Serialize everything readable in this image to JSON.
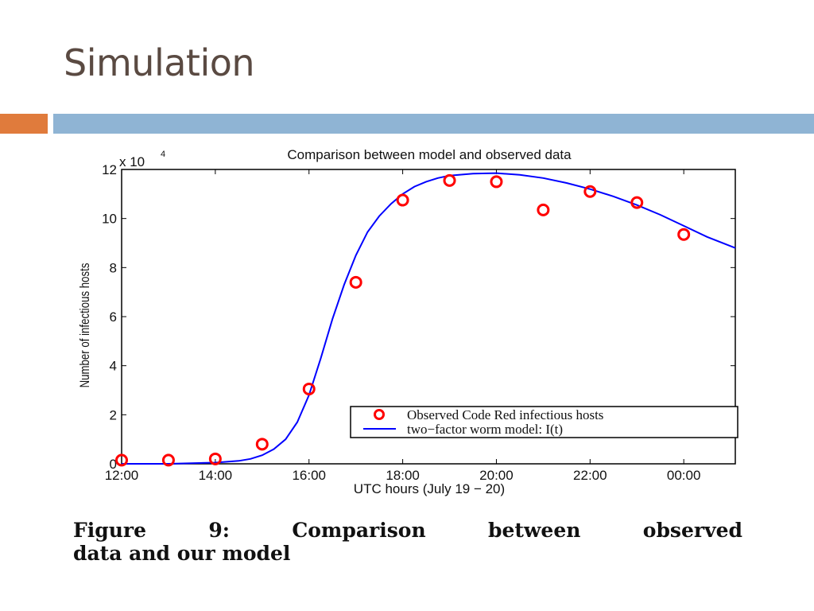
{
  "slide": {
    "title": "Simulation",
    "caption_line1": "Figure 9: Comparison between observed",
    "caption_line2": "data and our model"
  },
  "colors": {
    "accent_orange": "#e07b3c",
    "accent_blue": "#8fb4d4",
    "observed_marker": "#ff0000",
    "model_line": "#0000ff"
  },
  "chart_data": {
    "type": "line",
    "title": "Comparison between model and observed data",
    "xlabel": "UTC hours (July 19 − 20)",
    "ylabel": "Number of infectious hosts",
    "y_multiplier_label": "x 10",
    "y_multiplier_exp": "4",
    "xlim": [
      12,
      25.1
    ],
    "ylim": [
      0,
      12
    ],
    "x_ticks": [
      12,
      14,
      16,
      18,
      20,
      22,
      24
    ],
    "x_tick_labels": [
      "12:00",
      "14:00",
      "16:00",
      "18:00",
      "20:00",
      "22:00",
      "00:00"
    ],
    "y_ticks": [
      0,
      2,
      4,
      6,
      8,
      10,
      12
    ],
    "y_tick_labels": [
      "0",
      "2",
      "4",
      "6",
      "8",
      "10",
      "12"
    ],
    "legend_position": "bottom-right",
    "series": [
      {
        "name": "Observed Code Red infectious hosts",
        "kind": "scatter",
        "marker": "circle",
        "x": [
          12,
          13,
          14,
          15,
          16,
          17,
          18,
          19,
          20,
          21,
          22,
          23,
          24
        ],
        "y": [
          0.15,
          0.15,
          0.2,
          0.8,
          3.05,
          7.4,
          10.75,
          11.55,
          11.5,
          10.35,
          11.1,
          10.65,
          9.35
        ]
      },
      {
        "name": "two−factor worm model: I(t)",
        "kind": "line",
        "x": [
          12,
          13,
          14,
          14.5,
          14.75,
          15,
          15.25,
          15.5,
          15.75,
          16,
          16.25,
          16.5,
          16.75,
          17,
          17.25,
          17.5,
          17.75,
          18,
          18.25,
          18.5,
          18.75,
          19,
          19.5,
          20,
          20.5,
          21,
          21.5,
          22,
          22.5,
          23,
          23.5,
          24,
          24.5,
          25.1
        ],
        "y": [
          0.0,
          0.0,
          0.05,
          0.12,
          0.2,
          0.35,
          0.6,
          1.0,
          1.7,
          2.8,
          4.3,
          5.9,
          7.3,
          8.5,
          9.45,
          10.1,
          10.6,
          11.0,
          11.3,
          11.5,
          11.65,
          11.75,
          11.83,
          11.85,
          11.78,
          11.65,
          11.45,
          11.2,
          10.9,
          10.55,
          10.15,
          9.7,
          9.25,
          8.8
        ]
      }
    ]
  }
}
